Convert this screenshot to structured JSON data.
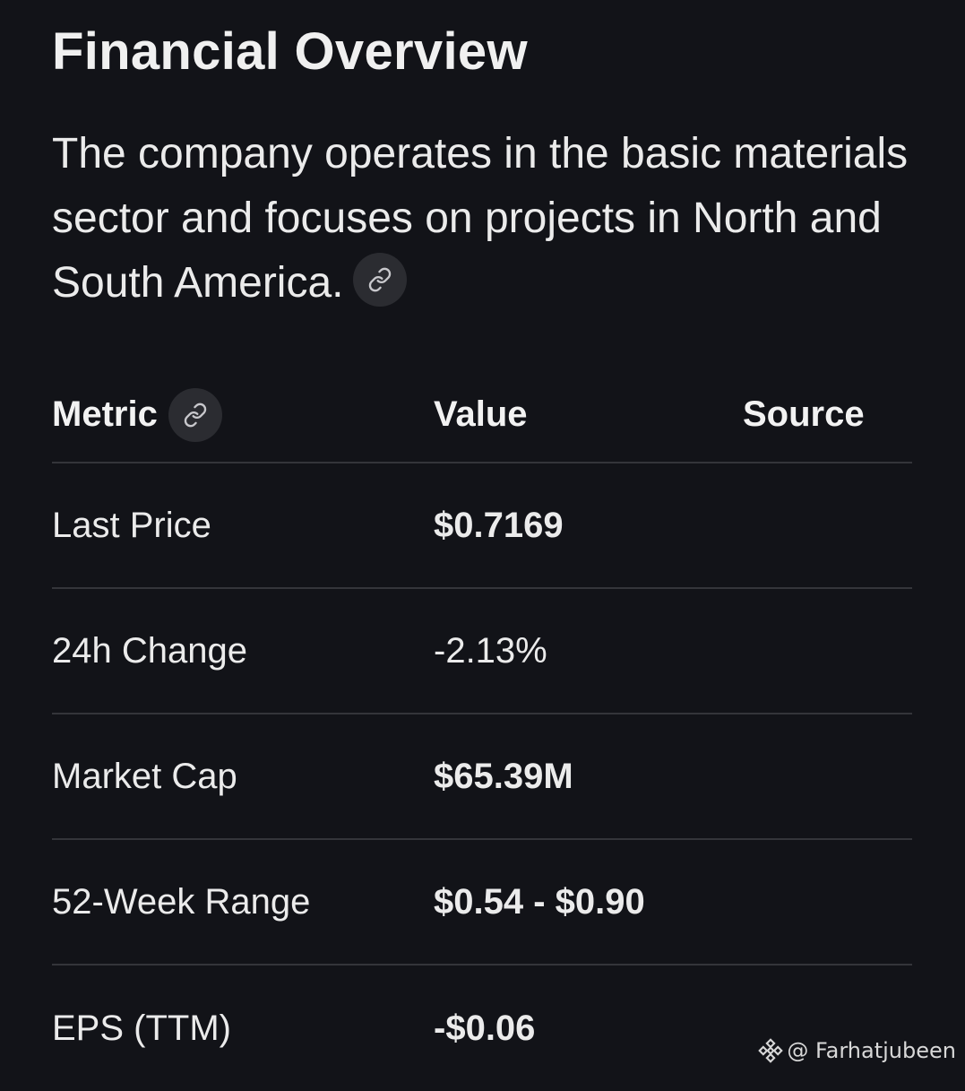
{
  "page": {
    "title": "Financial Overview",
    "description": "The company operates in the basic materials sector and focuses on projects in North and South America."
  },
  "table": {
    "headers": {
      "metric": "Metric",
      "value": "Value",
      "source": "Source"
    },
    "rows": [
      {
        "metric": "Last Price",
        "value": "$0.7169",
        "source": ""
      },
      {
        "metric": "24h Change",
        "value": "-2.13%",
        "source": ""
      },
      {
        "metric": "Market Cap",
        "value": "$65.39M",
        "source": ""
      },
      {
        "metric": "52-Week Range",
        "value": "$0.54 - $0.90",
        "source": ""
      },
      {
        "metric": "EPS (TTM)",
        "value": "-$0.06",
        "source": ""
      }
    ]
  },
  "watermark": {
    "text": "@ Farhatjubeen",
    "icon": "binance-logo-icon"
  },
  "colors": {
    "background": "#121318",
    "text": "#ebebeb",
    "divider": "#34353a",
    "icon_button": "#2b2c31"
  },
  "icons": {
    "link": "link-icon"
  }
}
